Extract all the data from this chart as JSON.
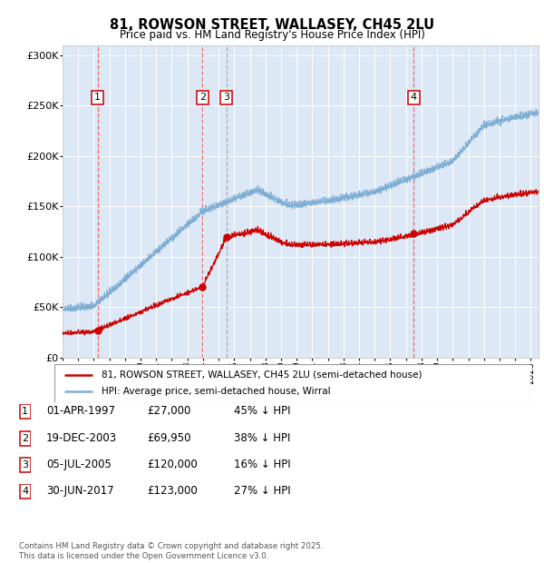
{
  "title": "81, ROWSON STREET, WALLASEY, CH45 2LU",
  "subtitle": "Price paid vs. HM Land Registry's House Price Index (HPI)",
  "sale_dates_label": [
    "01-APR-1997",
    "19-DEC-2003",
    "05-JUL-2005",
    "30-JUN-2017"
  ],
  "sale_prices": [
    27000,
    69950,
    120000,
    123000
  ],
  "sale_times": [
    1997.25,
    2003.96,
    2005.5,
    2017.5
  ],
  "sale_labels": [
    "1",
    "2",
    "3",
    "4"
  ],
  "sale_vline_colors": [
    "#ff6666",
    "#ff6666",
    "#aaaaaa",
    "#ff6666"
  ],
  "legend_property": "81, ROWSON STREET, WALLASEY, CH45 2LU (semi-detached house)",
  "legend_hpi": "HPI: Average price, semi-detached house, Wirral",
  "table_rows": [
    [
      "1",
      "01-APR-1997",
      "£27,000",
      "45% ↓ HPI"
    ],
    [
      "2",
      "19-DEC-2003",
      "£69,950",
      "38% ↓ HPI"
    ],
    [
      "3",
      "05-JUL-2005",
      "£120,000",
      "16% ↓ HPI"
    ],
    [
      "4",
      "30-JUN-2017",
      "£123,000",
      "27% ↓ HPI"
    ]
  ],
  "footnote": "Contains HM Land Registry data © Crown copyright and database right 2025.\nThis data is licensed under the Open Government Licence v3.0.",
  "hpi_color": "#7eadd4",
  "property_color": "#cc0000",
  "dashed_color_red": "#ff6666",
  "dashed_color_grey": "#aaaaaa",
  "plot_bg": "#dce8f5",
  "ylim": [
    0,
    310000
  ],
  "yticks": [
    0,
    50000,
    100000,
    150000,
    200000,
    250000,
    300000
  ],
  "ytick_labels": [
    "£0",
    "£50K",
    "£100K",
    "£150K",
    "£200K",
    "£250K",
    "£300K"
  ],
  "xmin": 1995.0,
  "xmax": 2025.5
}
